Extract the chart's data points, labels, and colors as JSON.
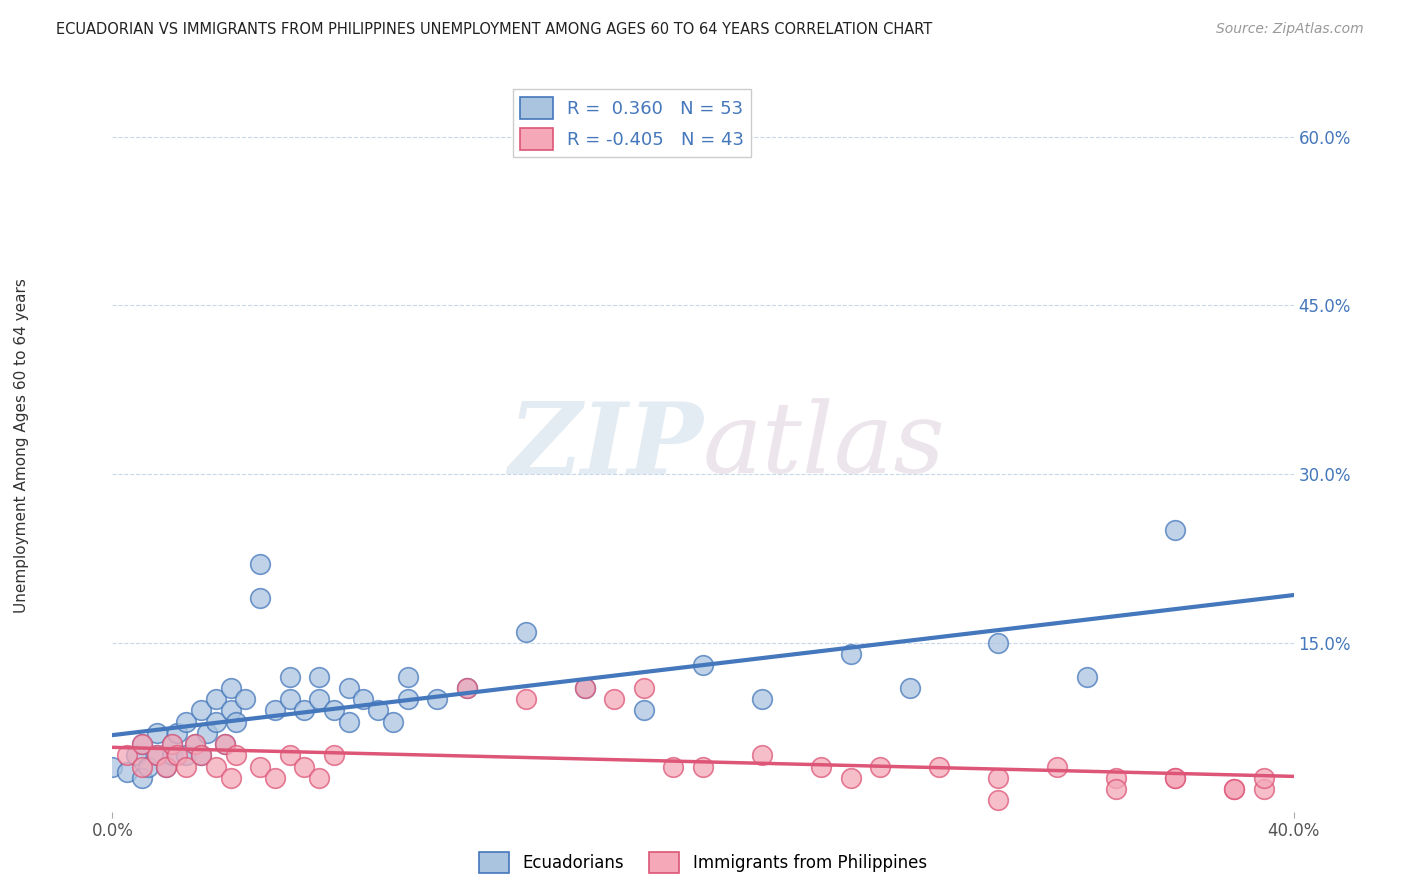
{
  "title": "ECUADORIAN VS IMMIGRANTS FROM PHILIPPINES UNEMPLOYMENT AMONG AGES 60 TO 64 YEARS CORRELATION CHART",
  "source": "Source: ZipAtlas.com",
  "ylabel": "Unemployment Among Ages 60 to 64 years",
  "xlim": [
    0.0,
    0.4
  ],
  "ylim": [
    0.0,
    0.65
  ],
  "xtick_labels": [
    "0.0%",
    "40.0%"
  ],
  "xtick_positions": [
    0.0,
    0.4
  ],
  "ytick_labels_right": [
    "15.0%",
    "30.0%",
    "45.0%",
    "60.0%"
  ],
  "ytick_positions_right": [
    0.15,
    0.3,
    0.45,
    0.6
  ],
  "grid_color": "#c8d8e8",
  "blue_color": "#4477bb",
  "blue_fill": "#aac4e0",
  "pink_color": "#dd5577",
  "pink_fill": "#f4a8b8",
  "blue_R": 0.36,
  "blue_N": 53,
  "pink_R": -0.405,
  "pink_N": 43,
  "blue_scatter_x": [
    0.0,
    0.005,
    0.008,
    0.01,
    0.01,
    0.012,
    0.015,
    0.015,
    0.018,
    0.02,
    0.02,
    0.022,
    0.025,
    0.025,
    0.028,
    0.03,
    0.03,
    0.032,
    0.035,
    0.035,
    0.038,
    0.04,
    0.04,
    0.042,
    0.045,
    0.05,
    0.05,
    0.055,
    0.06,
    0.06,
    0.065,
    0.07,
    0.07,
    0.075,
    0.08,
    0.08,
    0.085,
    0.09,
    0.095,
    0.1,
    0.1,
    0.11,
    0.12,
    0.14,
    0.16,
    0.18,
    0.2,
    0.22,
    0.25,
    0.27,
    0.3,
    0.33,
    0.36
  ],
  "blue_scatter_y": [
    0.04,
    0.035,
    0.05,
    0.03,
    0.06,
    0.04,
    0.05,
    0.07,
    0.04,
    0.05,
    0.06,
    0.07,
    0.05,
    0.08,
    0.06,
    0.05,
    0.09,
    0.07,
    0.08,
    0.1,
    0.06,
    0.09,
    0.11,
    0.08,
    0.1,
    0.22,
    0.19,
    0.09,
    0.1,
    0.12,
    0.09,
    0.1,
    0.12,
    0.09,
    0.11,
    0.08,
    0.1,
    0.09,
    0.08,
    0.1,
    0.12,
    0.1,
    0.11,
    0.16,
    0.11,
    0.09,
    0.13,
    0.1,
    0.14,
    0.11,
    0.15,
    0.12,
    0.25
  ],
  "pink_scatter_x": [
    0.005,
    0.01,
    0.01,
    0.015,
    0.018,
    0.02,
    0.022,
    0.025,
    0.028,
    0.03,
    0.035,
    0.038,
    0.04,
    0.042,
    0.05,
    0.055,
    0.06,
    0.065,
    0.07,
    0.075,
    0.12,
    0.14,
    0.16,
    0.17,
    0.18,
    0.19,
    0.2,
    0.22,
    0.24,
    0.25,
    0.26,
    0.28,
    0.3,
    0.32,
    0.34,
    0.36,
    0.38,
    0.39,
    0.39,
    0.38,
    0.36,
    0.34,
    0.3
  ],
  "pink_scatter_y": [
    0.05,
    0.04,
    0.06,
    0.05,
    0.04,
    0.06,
    0.05,
    0.04,
    0.06,
    0.05,
    0.04,
    0.06,
    0.03,
    0.05,
    0.04,
    0.03,
    0.05,
    0.04,
    0.03,
    0.05,
    0.11,
    0.1,
    0.11,
    0.1,
    0.11,
    0.04,
    0.04,
    0.05,
    0.04,
    0.03,
    0.04,
    0.04,
    0.03,
    0.04,
    0.03,
    0.03,
    0.02,
    0.02,
    0.03,
    0.02,
    0.03,
    0.02,
    0.01
  ],
  "watermark_zip": "ZIP",
  "watermark_atlas": "atlas",
  "legend_label_blue": "Ecuadorians",
  "legend_label_pink": "Immigrants from Philippines"
}
